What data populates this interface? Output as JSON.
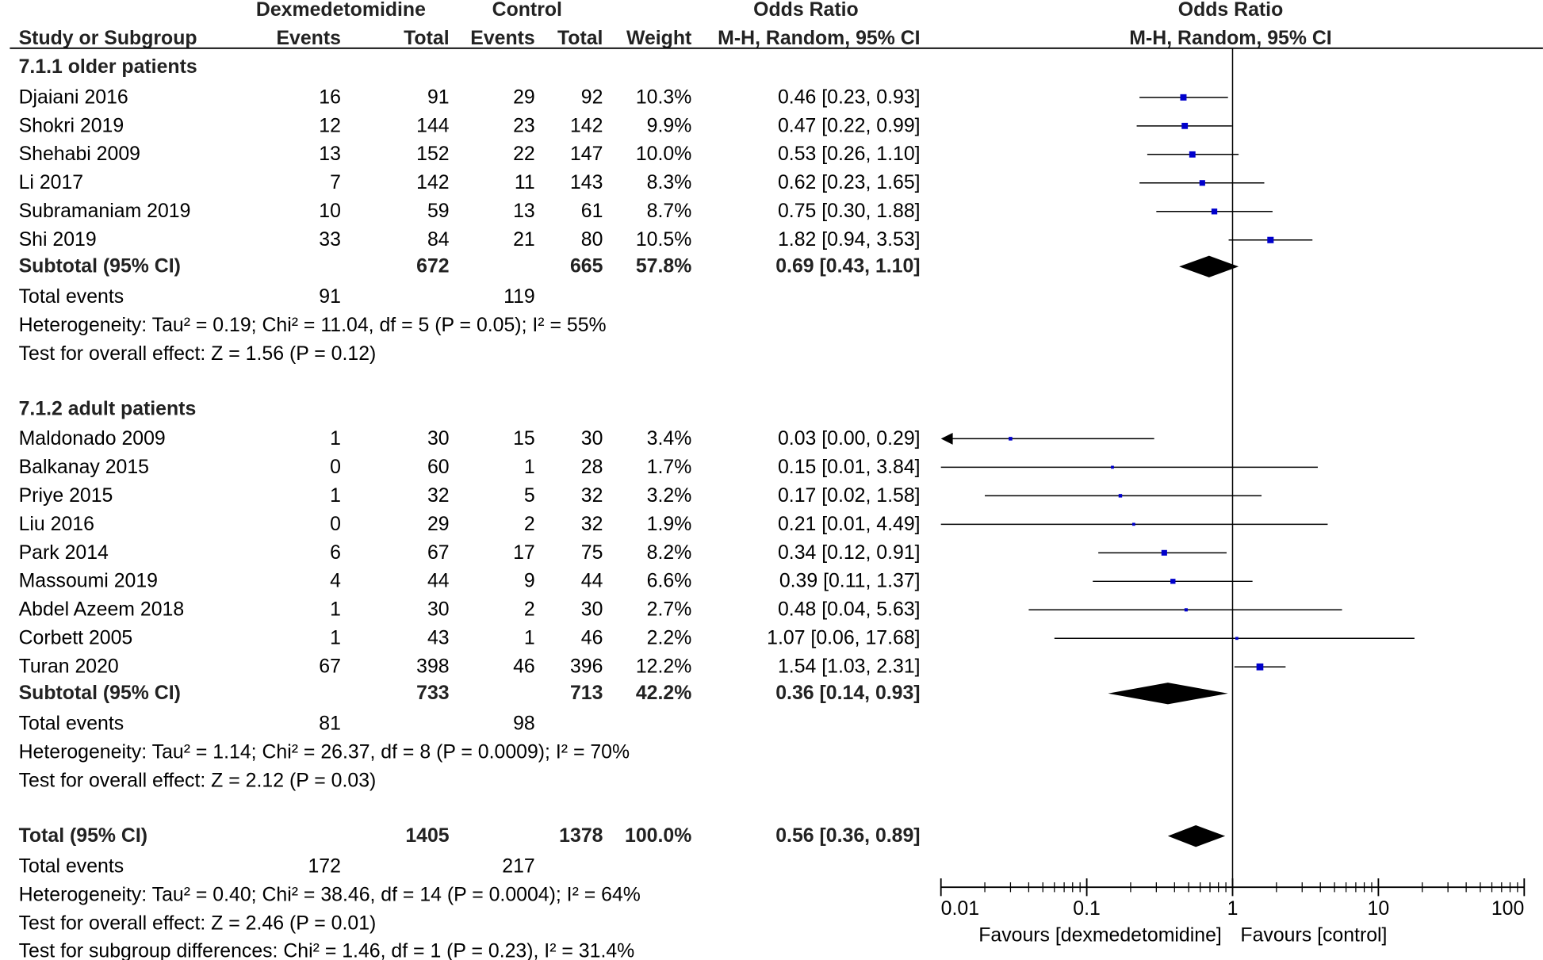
{
  "chart_data": {
    "type": "forest",
    "measure": "Odds Ratio",
    "method": "M-H, Random, 95% CI",
    "headers": {
      "study": "Study or Subgroup",
      "group_exp": "Dexmedetomidine",
      "group_ctrl": "Control",
      "events": "Events",
      "total": "Total",
      "weight": "Weight",
      "or_col": "Odds Ratio",
      "or_col_method": "M-H, Random, 95% CI",
      "plot_title": "Odds Ratio",
      "plot_method": "M-H, Random, 95% CI"
    },
    "subgroups": [
      {
        "name": "7.1.1 older patients",
        "studies": [
          {
            "study": "Djaiani 2016",
            "e_ev": "16",
            "e_tot": "91",
            "c_ev": "29",
            "c_tot": "92",
            "weight": "10.3%",
            "or_text": "0.46 [0.23, 0.93]",
            "or": 0.46,
            "lo": 0.23,
            "hi": 0.93
          },
          {
            "study": "Shokri 2019",
            "e_ev": "12",
            "e_tot": "144",
            "c_ev": "23",
            "c_tot": "142",
            "weight": "9.9%",
            "or_text": "0.47 [0.22, 0.99]",
            "or": 0.47,
            "lo": 0.22,
            "hi": 0.99
          },
          {
            "study": "Shehabi 2009",
            "e_ev": "13",
            "e_tot": "152",
            "c_ev": "22",
            "c_tot": "147",
            "weight": "10.0%",
            "or_text": "0.53 [0.26, 1.10]",
            "or": 0.53,
            "lo": 0.26,
            "hi": 1.1
          },
          {
            "study": "Li 2017",
            "e_ev": "7",
            "e_tot": "142",
            "c_ev": "11",
            "c_tot": "143",
            "weight": "8.3%",
            "or_text": "0.62 [0.23, 1.65]",
            "or": 0.62,
            "lo": 0.23,
            "hi": 1.65
          },
          {
            "study": "Subramaniam 2019",
            "e_ev": "10",
            "e_tot": "59",
            "c_ev": "13",
            "c_tot": "61",
            "weight": "8.7%",
            "or_text": "0.75 [0.30, 1.88]",
            "or": 0.75,
            "lo": 0.3,
            "hi": 1.88
          },
          {
            "study": "Shi 2019",
            "e_ev": "33",
            "e_tot": "84",
            "c_ev": "21",
            "c_tot": "80",
            "weight": "10.5%",
            "or_text": "1.82 [0.94, 3.53]",
            "or": 1.82,
            "lo": 0.94,
            "hi": 3.53
          }
        ],
        "subtotal": {
          "label": "Subtotal (95% CI)",
          "e_tot": "672",
          "c_tot": "665",
          "weight": "57.8%",
          "or_text": "0.69 [0.43, 1.10]",
          "or": 0.69,
          "lo": 0.43,
          "hi": 1.1
        },
        "events": {
          "label": "Total events",
          "e": "91",
          "c": "119"
        },
        "heterogeneity": "Heterogeneity: Tau² = 0.19; Chi² = 11.04, df = 5 (P = 0.05); I² = 55%",
        "overall": "Test for overall effect: Z = 1.56 (P = 0.12)"
      },
      {
        "name": "7.1.2 adult patients",
        "studies": [
          {
            "study": "Maldonado 2009",
            "e_ev": "1",
            "e_tot": "30",
            "c_ev": "15",
            "c_tot": "30",
            "weight": "3.4%",
            "or_text": "0.03 [0.00, 0.29]",
            "or": 0.03,
            "lo": 0.0,
            "hi": 0.29
          },
          {
            "study": "Balkanay 2015",
            "e_ev": "0",
            "e_tot": "60",
            "c_ev": "1",
            "c_tot": "28",
            "weight": "1.7%",
            "or_text": "0.15 [0.01, 3.84]",
            "or": 0.15,
            "lo": 0.01,
            "hi": 3.84
          },
          {
            "study": "Priye 2015",
            "e_ev": "1",
            "e_tot": "32",
            "c_ev": "5",
            "c_tot": "32",
            "weight": "3.2%",
            "or_text": "0.17 [0.02, 1.58]",
            "or": 0.17,
            "lo": 0.02,
            "hi": 1.58
          },
          {
            "study": "Liu 2016",
            "e_ev": "0",
            "e_tot": "29",
            "c_ev": "2",
            "c_tot": "32",
            "weight": "1.9%",
            "or_text": "0.21 [0.01, 4.49]",
            "or": 0.21,
            "lo": 0.01,
            "hi": 4.49
          },
          {
            "study": "Park 2014",
            "e_ev": "6",
            "e_tot": "67",
            "c_ev": "17",
            "c_tot": "75",
            "weight": "8.2%",
            "or_text": "0.34 [0.12, 0.91]",
            "or": 0.34,
            "lo": 0.12,
            "hi": 0.91
          },
          {
            "study": "Massoumi 2019",
            "e_ev": "4",
            "e_tot": "44",
            "c_ev": "9",
            "c_tot": "44",
            "weight": "6.6%",
            "or_text": "0.39 [0.11, 1.37]",
            "or": 0.39,
            "lo": 0.11,
            "hi": 1.37
          },
          {
            "study": "Abdel Azeem 2018",
            "e_ev": "1",
            "e_tot": "30",
            "c_ev": "2",
            "c_tot": "30",
            "weight": "2.7%",
            "or_text": "0.48 [0.04, 5.63]",
            "or": 0.48,
            "lo": 0.04,
            "hi": 5.63
          },
          {
            "study": "Corbett 2005",
            "e_ev": "1",
            "e_tot": "43",
            "c_ev": "1",
            "c_tot": "46",
            "weight": "2.2%",
            "or_text": "1.07 [0.06, 17.68]",
            "or": 1.07,
            "lo": 0.06,
            "hi": 17.68
          },
          {
            "study": "Turan 2020",
            "e_ev": "67",
            "e_tot": "398",
            "c_ev": "46",
            "c_tot": "396",
            "weight": "12.2%",
            "or_text": "1.54 [1.03, 2.31]",
            "or": 1.54,
            "lo": 1.03,
            "hi": 2.31
          }
        ],
        "subtotal": {
          "label": "Subtotal (95% CI)",
          "e_tot": "733",
          "c_tot": "713",
          "weight": "42.2%",
          "or_text": "0.36 [0.14, 0.93]",
          "or": 0.36,
          "lo": 0.14,
          "hi": 0.93
        },
        "events": {
          "label": "Total events",
          "e": "81",
          "c": "98"
        },
        "heterogeneity": "Heterogeneity: Tau² = 1.14; Chi² = 26.37, df = 8 (P = 0.0009); I² = 70%",
        "overall": "Test for overall effect: Z = 2.12 (P = 0.03)"
      }
    ],
    "total": {
      "label": "Total (95% CI)",
      "e_tot": "1405",
      "c_tot": "1378",
      "weight": "100.0%",
      "or_text": "0.56 [0.36, 0.89]",
      "or": 0.56,
      "lo": 0.36,
      "hi": 0.89,
      "events": {
        "label": "Total events",
        "e": "172",
        "c": "217"
      },
      "heterogeneity": "Heterogeneity: Tau² = 0.40; Chi² = 38.46, df = 14 (P = 0.0004); I² = 64%",
      "overall": "Test for overall effect: Z = 2.46 (P = 0.01)",
      "subgroup_diff": "Test for subgroup differences: Chi² = 1.46, df = 1 (P = 0.23), I² = 31.4%"
    },
    "axis": {
      "scale": "log",
      "range": [
        0.01,
        100
      ],
      "ticks": [
        0.01,
        0.1,
        1,
        10,
        100
      ],
      "tick_labels": [
        "0.01",
        "0.1",
        "1",
        "10",
        "100"
      ],
      "favours_left": "Favours [dexmedetomidine]",
      "favours_right": "Favours [control]"
    },
    "colors": {
      "marker": "#0000cc",
      "diamond": "#000000",
      "line": "#000000",
      "text": "#000000"
    }
  }
}
